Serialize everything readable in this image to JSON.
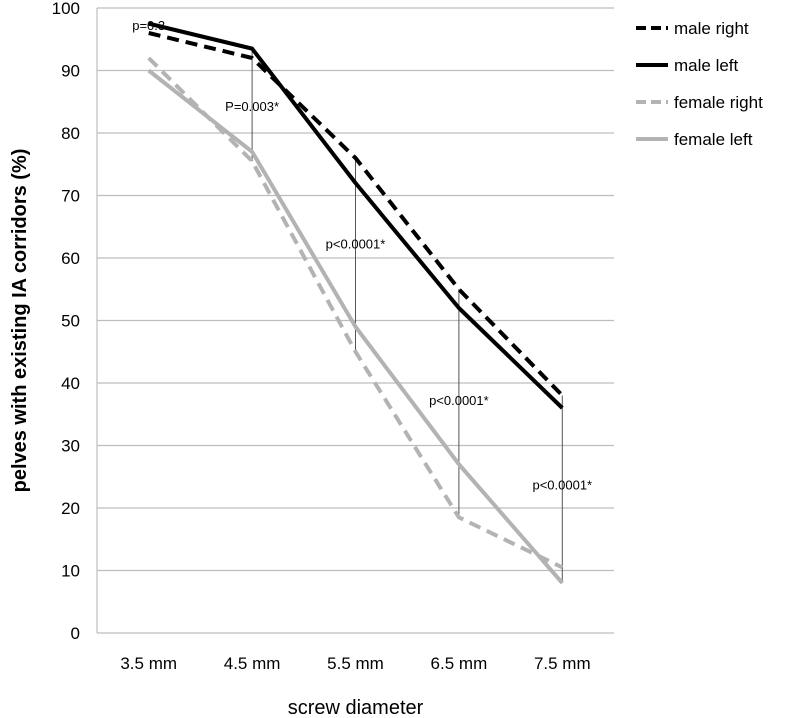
{
  "chart_data": {
    "type": "line",
    "xlabel": "screw diameter",
    "ylabel": "pelves with existing IA corridors (%)",
    "categories": [
      "3.5 mm",
      "4.5 mm",
      "5.5 mm",
      "6.5 mm",
      "7.5 mm"
    ],
    "ylim": [
      0,
      100
    ],
    "yticks": [
      0,
      10,
      20,
      30,
      40,
      50,
      60,
      70,
      80,
      90,
      100
    ],
    "grid": true,
    "legend_position": "top-right",
    "series": [
      {
        "name": "male right",
        "values": [
          96,
          92,
          76,
          55,
          38
        ],
        "color": "#000000",
        "dash": true
      },
      {
        "name": "male left",
        "values": [
          97.5,
          93.5,
          72,
          52,
          36
        ],
        "color": "#000000",
        "dash": false
      },
      {
        "name": "female right",
        "values": [
          92,
          75.5,
          45,
          18.5,
          10.5
        ],
        "color": "#b3b3b3",
        "dash": true
      },
      {
        "name": "female left",
        "values": [
          90,
          77,
          49,
          27,
          8
        ],
        "color": "#b3b3b3",
        "dash": false
      }
    ],
    "annotations": [
      {
        "category_index": 0,
        "text": "p=0.3",
        "y_value": 96.5
      },
      {
        "category_index": 1,
        "text": "P=0.003*",
        "y_value": 83.5
      },
      {
        "category_index": 2,
        "text": "p<0.0001*",
        "y_value": 61.5
      },
      {
        "category_index": 3,
        "text": "p<0.0001*",
        "y_value": 36.5
      },
      {
        "category_index": 4,
        "text": "p<0.0001*",
        "y_value": 23
      }
    ]
  }
}
